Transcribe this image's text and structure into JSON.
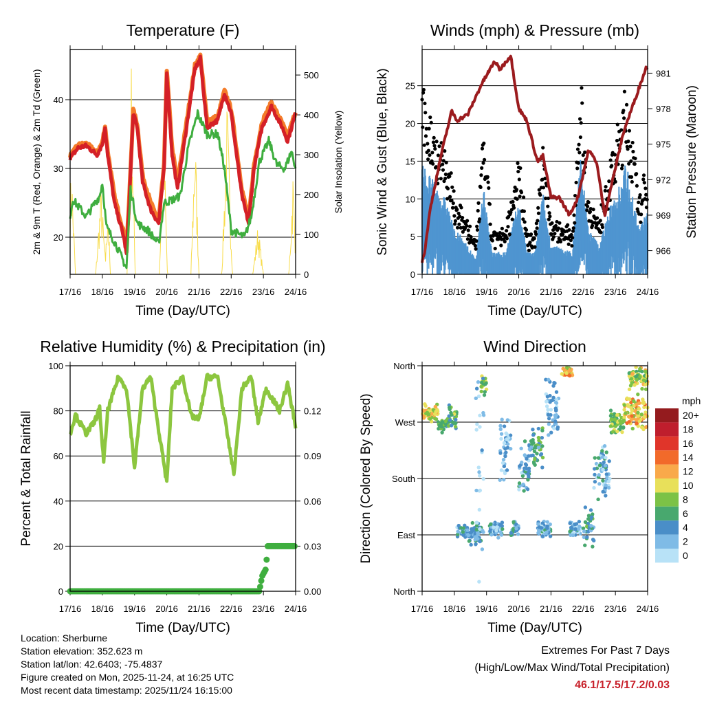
{
  "chart_data": [
    {
      "type": "line",
      "title": "Temperature (F)",
      "xlabel": "Time (Day/UTC)",
      "ylabel": "2m & 9m T (Red, Orange) & 2m Td (Green)",
      "y2label": "Solar Insolation (Yellow)",
      "xticks": [
        "17/16",
        "18/16",
        "19/16",
        "20/16",
        "21/16",
        "22/16",
        "23/16",
        "24/16"
      ],
      "xlim": [
        0,
        168
      ],
      "ylim": [
        14.6,
        47.3
      ],
      "yticks": [
        20,
        30,
        40
      ],
      "y2lim": [
        0,
        564
      ],
      "y2ticks": [
        0,
        100,
        200,
        300,
        400,
        500
      ],
      "series": [
        {
          "name": "2m T",
          "color": "#d42027",
          "points": [
            [
              0,
              31.5
            ],
            [
              6,
              33
            ],
            [
              12,
              33.3
            ],
            [
              20,
              32
            ],
            [
              24,
              33.5
            ],
            [
              26,
              36
            ],
            [
              28,
              32
            ],
            [
              33,
              25
            ],
            [
              40,
              20
            ],
            [
              42,
              17.5
            ],
            [
              44,
              25
            ],
            [
              47,
              38
            ],
            [
              50,
              36
            ],
            [
              54,
              28
            ],
            [
              60,
              24
            ],
            [
              66,
              22
            ],
            [
              70,
              30
            ],
            [
              72,
              44
            ],
            [
              76,
              32
            ],
            [
              80,
              27
            ],
            [
              86,
              35
            ],
            [
              93,
              44.5
            ],
            [
              97,
              46
            ],
            [
              102,
              36
            ],
            [
              110,
              37
            ],
            [
              115,
              41
            ],
            [
              120,
              38
            ],
            [
              128,
              26
            ],
            [
              133,
              22
            ],
            [
              137,
              30
            ],
            [
              143,
              36
            ],
            [
              150,
              39
            ],
            [
              158,
              36
            ],
            [
              162,
              34
            ],
            [
              168,
              38
            ]
          ]
        },
        {
          "name": "9m T",
          "color": "#f47c2a",
          "points": [
            [
              0,
              31.8
            ],
            [
              6,
              33.4
            ],
            [
              12,
              33.6
            ],
            [
              20,
              32.3
            ],
            [
              24,
              33.8
            ],
            [
              26,
              36.2
            ],
            [
              28,
              32.6
            ],
            [
              33,
              26
            ],
            [
              40,
              20.6
            ],
            [
              42,
              18
            ],
            [
              44,
              25.5
            ],
            [
              47,
              38.5
            ],
            [
              50,
              36.5
            ],
            [
              54,
              29
            ],
            [
              60,
              25
            ],
            [
              66,
              22.5
            ],
            [
              70,
              30.5
            ],
            [
              72,
              44.3
            ],
            [
              76,
              33
            ],
            [
              80,
              28
            ],
            [
              86,
              35.8
            ],
            [
              93,
              45
            ],
            [
              97,
              46.4
            ],
            [
              102,
              37
            ],
            [
              110,
              37.5
            ],
            [
              115,
              41.3
            ],
            [
              120,
              38.6
            ],
            [
              128,
              27
            ],
            [
              133,
              22.6
            ],
            [
              137,
              30.5
            ],
            [
              143,
              36.8
            ],
            [
              150,
              39.6
            ],
            [
              158,
              36.6
            ],
            [
              162,
              34.6
            ],
            [
              168,
              38.3
            ]
          ]
        },
        {
          "name": "2m Td",
          "color": "#3fae3f",
          "points": [
            [
              0,
              23
            ],
            [
              2,
              25.5
            ],
            [
              8,
              24
            ],
            [
              12,
              23
            ],
            [
              22,
              26
            ],
            [
              24,
              28
            ],
            [
              27,
              21.5
            ],
            [
              34,
              19
            ],
            [
              42,
              15.5
            ],
            [
              45,
              27
            ],
            [
              50,
              22
            ],
            [
              58,
              21
            ],
            [
              66,
              19
            ],
            [
              70,
              25
            ],
            [
              77,
              25.5
            ],
            [
              82,
              26
            ],
            [
              88,
              33
            ],
            [
              95,
              38
            ],
            [
              102,
              35
            ],
            [
              110,
              35
            ],
            [
              115,
              30
            ],
            [
              120,
              21
            ],
            [
              130,
              20
            ],
            [
              135,
              23
            ],
            [
              141,
              31
            ],
            [
              148,
              34
            ],
            [
              154,
              30.5
            ],
            [
              160,
              30
            ],
            [
              165,
              32.5
            ],
            [
              168,
              30
            ]
          ]
        },
        {
          "name": "Solar Insolation",
          "color": "#f8dc4a",
          "peaks": [
            [
              1,
              3,
              300
            ],
            [
              23,
              4,
              230
            ],
            [
              28,
              2,
              210
            ],
            [
              45.5,
              3,
              564
            ],
            [
              69.5,
              3,
              450
            ],
            [
              93,
              3,
              400
            ],
            [
              117,
              4,
              450
            ],
            [
              140,
              4,
              130
            ],
            [
              166,
              3,
              270
            ]
          ]
        }
      ]
    },
    {
      "type": "line+scatter",
      "title": "Winds (mph) & Pressure (mb)",
      "xlabel": "Time (Day/UTC)",
      "ylabel": "Sonic Wind & Gust (Blue, Black)",
      "y2label": "Station Pressure (Maroon)",
      "xticks": [
        "17/16",
        "18/16",
        "19/16",
        "20/16",
        "21/16",
        "22/16",
        "23/16",
        "24/16"
      ],
      "xlim": [
        0,
        168
      ],
      "ylim": [
        0,
        29.8
      ],
      "yticks": [
        0,
        5,
        10,
        15,
        20,
        25
      ],
      "y2lim": [
        964,
        983
      ],
      "y2ticks": [
        966,
        969,
        972,
        975,
        978,
        981
      ],
      "wind_envelope": [
        [
          0,
          15
        ],
        [
          10,
          12
        ],
        [
          18,
          10
        ],
        [
          24,
          6
        ],
        [
          30,
          5
        ],
        [
          40,
          2
        ],
        [
          46,
          12
        ],
        [
          52,
          3
        ],
        [
          62,
          3
        ],
        [
          72,
          10
        ],
        [
          78,
          3
        ],
        [
          84,
          3
        ],
        [
          90,
          11
        ],
        [
          96,
          4
        ],
        [
          112,
          3
        ],
        [
          118,
          16
        ],
        [
          124,
          6
        ],
        [
          132,
          4
        ],
        [
          138,
          8
        ],
        [
          146,
          12
        ],
        [
          152,
          15
        ],
        [
          162,
          6
        ],
        [
          168,
          9
        ]
      ],
      "wind_color": "#4f95d0",
      "gust_color": "#000000",
      "pressure": {
        "color": "#9b1b1e",
        "points": [
          [
            0,
            965
          ],
          [
            2,
            966
          ],
          [
            6,
            969.5
          ],
          [
            14,
            974
          ],
          [
            22,
            977.8
          ],
          [
            26,
            977
          ],
          [
            34,
            977.5
          ],
          [
            44,
            980
          ],
          [
            54,
            982
          ],
          [
            58,
            981.3
          ],
          [
            66,
            982.5
          ],
          [
            72,
            978
          ],
          [
            78,
            977
          ],
          [
            86,
            973.5
          ],
          [
            90,
            974
          ],
          [
            96,
            970.5
          ],
          [
            102,
            970.5
          ],
          [
            110,
            969
          ],
          [
            116,
            970.5
          ],
          [
            124,
            974.5
          ],
          [
            130,
            973.5
          ],
          [
            136,
            969
          ],
          [
            142,
            972
          ],
          [
            150,
            976
          ],
          [
            167,
            981.5
          ]
        ]
      }
    },
    {
      "type": "line",
      "title": "Relative Humidity (%) & Precipitation (in)",
      "xlabel": "Time (Day/UTC)",
      "ylabel": "Percent & Total Rainfall",
      "xticks": [
        "17/16",
        "18/16",
        "19/16",
        "20/16",
        "21/16",
        "22/16",
        "23/16",
        "24/16"
      ],
      "xlim": [
        0,
        168
      ],
      "ylim": [
        0,
        100
      ],
      "yticks": [
        0,
        20,
        40,
        60,
        80,
        100
      ],
      "y2lim": [
        0,
        0.15
      ],
      "y2ticks": [
        "0.00",
        "0.03",
        "0.06",
        "0.09",
        "0.12"
      ],
      "series": [
        {
          "name": "RH",
          "color": "#8cc63f",
          "points": [
            [
              0,
              70
            ],
            [
              4,
              78
            ],
            [
              12,
              70
            ],
            [
              18,
              75
            ],
            [
              22,
              81
            ],
            [
              25,
              57
            ],
            [
              28,
              80
            ],
            [
              36,
              95
            ],
            [
              42,
              90
            ],
            [
              48,
              55
            ],
            [
              54,
              90
            ],
            [
              60,
              95
            ],
            [
              72,
              48
            ],
            [
              76,
              90
            ],
            [
              84,
              95
            ],
            [
              90,
              78
            ],
            [
              96,
              76
            ],
            [
              102,
              95
            ],
            [
              110,
              95
            ],
            [
              122,
              52
            ],
            [
              128,
              90
            ],
            [
              135,
              95
            ],
            [
              140,
              75
            ],
            [
              146,
              90
            ],
            [
              156,
              80
            ],
            [
              162,
              92
            ],
            [
              168,
              73
            ]
          ]
        },
        {
          "name": "Precipitation",
          "color": "#3fae3f",
          "points": [
            [
              0,
              0
            ],
            [
              141,
              0
            ],
            [
              143,
              0.01
            ],
            [
              146,
              0.015
            ],
            [
              147,
              0.03
            ],
            [
              168,
              0.03
            ]
          ]
        }
      ]
    },
    {
      "type": "scatter",
      "title": "Wind Direction",
      "xlabel": "Time (Day/UTC)",
      "ylabel": "Direction (Colored By Speed)",
      "xticks": [
        "17/16",
        "18/16",
        "19/16",
        "20/16",
        "21/16",
        "22/16",
        "23/16",
        "24/16"
      ],
      "xlim": [
        0,
        168
      ],
      "ylim": [
        0,
        360
      ],
      "yticks": [
        "North",
        "East",
        "South",
        "West",
        "North"
      ],
      "clusters": [
        [
          0,
          12,
          285,
          15,
          11
        ],
        [
          12,
          20,
          265,
          12,
          7
        ],
        [
          20,
          26,
          280,
          25,
          8
        ],
        [
          26,
          34,
          95,
          12,
          4
        ],
        [
          34,
          44,
          90,
          20,
          5
        ],
        [
          44,
          48,
          330,
          20,
          9
        ],
        [
          40,
          46,
          180,
          180,
          2
        ],
        [
          50,
          60,
          100,
          15,
          4
        ],
        [
          58,
          66,
          230,
          60,
          3
        ],
        [
          66,
          72,
          100,
          15,
          5
        ],
        [
          72,
          80,
          190,
          60,
          4
        ],
        [
          80,
          90,
          230,
          40,
          6
        ],
        [
          86,
          96,
          100,
          15,
          4
        ],
        [
          92,
          102,
          300,
          60,
          3
        ],
        [
          104,
          112,
          350,
          8,
          12
        ],
        [
          110,
          118,
          100,
          15,
          4
        ],
        [
          120,
          128,
          110,
          40,
          6
        ],
        [
          128,
          140,
          190,
          50,
          4
        ],
        [
          140,
          150,
          270,
          20,
          9
        ],
        [
          150,
          168,
          285,
          30,
          12
        ],
        [
          154,
          168,
          340,
          20,
          10
        ]
      ],
      "colorbar": {
        "title": "mph",
        "labels": [
          "20+",
          "18",
          "16",
          "14",
          "12",
          "10",
          "8",
          "6",
          "4",
          "2",
          "0"
        ],
        "colors": [
          "#941b1e",
          "#bf1e2d",
          "#e0352a",
          "#f26a2a",
          "#f9a94a",
          "#e8e05a",
          "#7cc246",
          "#48a86e",
          "#4a8ec8",
          "#7fbbe6",
          "#b8e2f7"
        ]
      }
    }
  ],
  "footer": {
    "location": "Location: Sherburne",
    "elevation": "Station elevation: 352.623 m",
    "latlon": "Station lat/lon: 42.6403; -75.4837",
    "created": "Figure created on Mon, 2025-11-24, at 16:25 UTC",
    "recent": "Most recent data timestamp: 2025/11/24 16:15:00"
  },
  "extremes": {
    "title": "Extremes For Past 7 Days",
    "subtitle": "(High/Low/Max Wind/Total Precipitation)",
    "values": "46.1/17.5/17.2/0.03"
  }
}
